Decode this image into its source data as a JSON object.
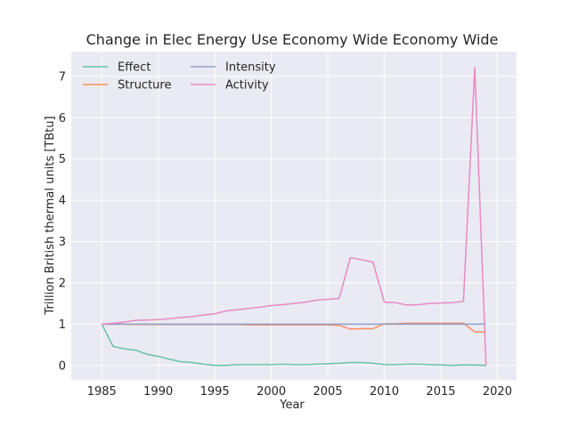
{
  "chart_data": {
    "type": "line",
    "title": "Change in Elec Energy Use Economy Wide Economy Wide",
    "xlabel": "Year",
    "ylabel": "Trillion British thermal units [TBtu]",
    "xlim": [
      1982.3,
      2021.7
    ],
    "ylim": [
      -0.35,
      7.6
    ],
    "xticks": [
      1985,
      1990,
      1995,
      2000,
      2005,
      2010,
      2015,
      2020
    ],
    "yticks": [
      0,
      1,
      2,
      3,
      4,
      5,
      6,
      7
    ],
    "grid": true,
    "legend_position": "top-left",
    "x": [
      1985,
      1986,
      1987,
      1988,
      1989,
      1990,
      1991,
      1992,
      1993,
      1994,
      1995,
      1996,
      1997,
      1998,
      1999,
      2000,
      2001,
      2002,
      2003,
      2004,
      2005,
      2006,
      2007,
      2008,
      2009,
      2010,
      2011,
      2012,
      2013,
      2014,
      2015,
      2016,
      2017,
      2018,
      2019
    ],
    "series": [
      {
        "name": "Effect",
        "color": "#66c2a5",
        "values": [
          1.0,
          0.46,
          0.4,
          0.37,
          0.27,
          0.22,
          0.15,
          0.09,
          0.07,
          0.03,
          0.0,
          0.0,
          0.02,
          0.02,
          0.02,
          0.02,
          0.03,
          0.02,
          0.02,
          0.03,
          0.04,
          0.05,
          0.07,
          0.07,
          0.05,
          0.02,
          0.02,
          0.03,
          0.03,
          0.02,
          0.01,
          0.0,
          0.01,
          0.01,
          0.0
        ]
      },
      {
        "name": "Structure",
        "color": "#fc8d62",
        "values": [
          1.0,
          1.0,
          1.0,
          0.99,
          0.99,
          0.99,
          0.99,
          0.99,
          0.99,
          0.99,
          0.99,
          0.99,
          0.99,
          0.98,
          0.98,
          0.98,
          0.98,
          0.98,
          0.98,
          0.98,
          0.98,
          0.97,
          0.88,
          0.89,
          0.89,
          1.01,
          1.01,
          1.02,
          1.02,
          1.02,
          1.02,
          1.02,
          1.02,
          0.81,
          0.81
        ]
      },
      {
        "name": "Intensity",
        "color": "#8da0cb",
        "values": [
          1.0,
          1.0,
          1.0,
          1.0,
          1.0,
          1.0,
          1.0,
          1.0,
          1.0,
          1.0,
          1.0,
          1.0,
          1.0,
          1.0,
          1.0,
          1.0,
          1.0,
          1.0,
          1.0,
          1.0,
          1.0,
          1.0,
          1.0,
          1.0,
          1.0,
          1.0,
          1.0,
          1.0,
          1.0,
          1.0,
          1.0,
          1.0,
          1.0,
          1.0,
          1.0
        ]
      },
      {
        "name": "Activity",
        "color": "#e78ac3",
        "values": [
          1.0,
          1.02,
          1.05,
          1.09,
          1.1,
          1.11,
          1.13,
          1.16,
          1.18,
          1.22,
          1.25,
          1.32,
          1.35,
          1.38,
          1.41,
          1.45,
          1.47,
          1.5,
          1.53,
          1.58,
          1.6,
          1.62,
          2.61,
          2.56,
          2.5,
          1.53,
          1.52,
          1.46,
          1.47,
          1.5,
          1.51,
          1.52,
          1.55,
          7.22,
          0.0
        ]
      }
    ]
  }
}
